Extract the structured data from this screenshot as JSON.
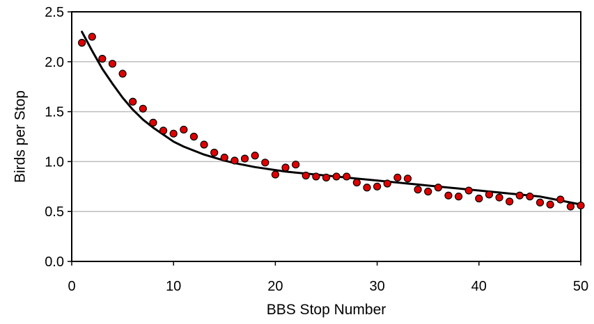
{
  "chart_data": {
    "type": "scatter",
    "title": "",
    "xlabel": "BBS Stop Number",
    "ylabel": "Birds per Stop",
    "xlim": [
      0,
      50
    ],
    "ylim": [
      0,
      2.5
    ],
    "x_ticks": [
      0,
      10,
      20,
      30,
      40,
      50
    ],
    "y_ticks": [
      0.0,
      0.5,
      1.0,
      1.5,
      2.0,
      2.5
    ],
    "x_tick_labels": [
      "0",
      "10",
      "20",
      "30",
      "40",
      "50"
    ],
    "y_tick_labels": [
      "0.0",
      "0.5",
      "1.0",
      "1.5",
      "2.0",
      "2.5"
    ],
    "grid": "horizontal",
    "legend": "none",
    "series": [
      {
        "kind": "points",
        "color": "#e00000",
        "edge_color": "#000000",
        "x": [
          1,
          2,
          3,
          4,
          5,
          6,
          7,
          8,
          9,
          10,
          11,
          12,
          13,
          14,
          15,
          16,
          17,
          18,
          19,
          20,
          21,
          22,
          23,
          24,
          25,
          26,
          27,
          28,
          29,
          30,
          31,
          32,
          33,
          34,
          35,
          36,
          37,
          38,
          39,
          40,
          41,
          42,
          43,
          44,
          45,
          46,
          47,
          48,
          49,
          50
        ],
        "y": [
          2.19,
          2.25,
          2.03,
          1.98,
          1.88,
          1.6,
          1.53,
          1.39,
          1.31,
          1.28,
          1.32,
          1.25,
          1.17,
          1.09,
          1.04,
          1.01,
          1.03,
          1.06,
          0.99,
          0.87,
          0.94,
          0.97,
          0.86,
          0.85,
          0.84,
          0.85,
          0.85,
          0.79,
          0.74,
          0.75,
          0.78,
          0.84,
          0.83,
          0.72,
          0.7,
          0.74,
          0.66,
          0.65,
          0.71,
          0.63,
          0.67,
          0.64,
          0.6,
          0.66,
          0.65,
          0.59,
          0.57,
          0.62,
          0.55,
          0.56
        ]
      },
      {
        "kind": "trend",
        "color": "#000000",
        "x": [
          1,
          2,
          3,
          4,
          5,
          6,
          7,
          8,
          9,
          10,
          11,
          12,
          13,
          14,
          15,
          16,
          17,
          18,
          19,
          20,
          21,
          22,
          23,
          24,
          25,
          26,
          27,
          28,
          29,
          30,
          31,
          32,
          33,
          34,
          35,
          36,
          37,
          38,
          39,
          40,
          41,
          42,
          43,
          44,
          45,
          46,
          47,
          48,
          49,
          50
        ],
        "y": [
          2.3,
          2.11,
          1.93,
          1.78,
          1.64,
          1.52,
          1.42,
          1.34,
          1.27,
          1.2,
          1.15,
          1.11,
          1.07,
          1.04,
          1.01,
          0.985,
          0.965,
          0.945,
          0.93,
          0.915,
          0.9,
          0.89,
          0.88,
          0.87,
          0.86,
          0.85,
          0.84,
          0.83,
          0.82,
          0.81,
          0.8,
          0.79,
          0.78,
          0.77,
          0.76,
          0.75,
          0.74,
          0.73,
          0.72,
          0.71,
          0.7,
          0.69,
          0.68,
          0.67,
          0.66,
          0.65,
          0.63,
          0.61,
          0.59,
          0.57
        ]
      }
    ]
  }
}
